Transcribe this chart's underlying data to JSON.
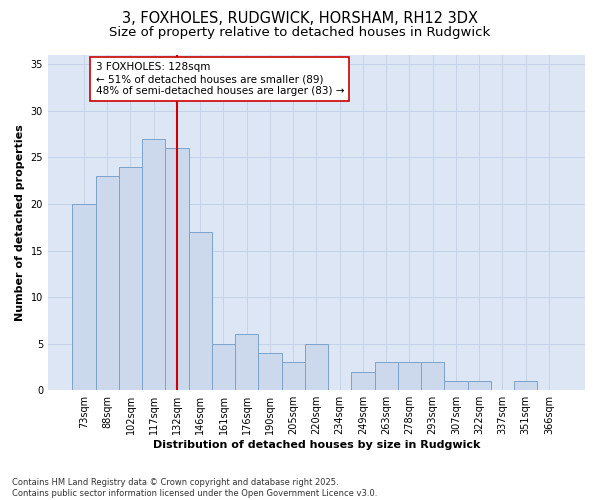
{
  "title_line1": "3, FOXHOLES, RUDGWICK, HORSHAM, RH12 3DX",
  "title_line2": "Size of property relative to detached houses in Rudgwick",
  "xlabel": "Distribution of detached houses by size in Rudgwick",
  "ylabel": "Number of detached properties",
  "categories": [
    "73sqm",
    "88sqm",
    "102sqm",
    "117sqm",
    "132sqm",
    "146sqm",
    "161sqm",
    "176sqm",
    "190sqm",
    "205sqm",
    "220sqm",
    "234sqm",
    "249sqm",
    "263sqm",
    "278sqm",
    "293sqm",
    "307sqm",
    "322sqm",
    "337sqm",
    "351sqm",
    "366sqm"
  ],
  "values": [
    20,
    23,
    24,
    27,
    26,
    17,
    5,
    6,
    4,
    3,
    5,
    0,
    2,
    3,
    3,
    3,
    1,
    1,
    0,
    1,
    0
  ],
  "bar_color": "#ccd9ec",
  "bar_edge_color": "#7ba3cc",
  "vline_x_index": 4,
  "vline_color": "#cc0000",
  "annotation_text": "3 FOXHOLES: 128sqm\n← 51% of detached houses are smaller (89)\n48% of semi-detached houses are larger (83) →",
  "annotation_box_facecolor": "#ffffff",
  "annotation_box_edgecolor": "#cc0000",
  "ylim": [
    0,
    36
  ],
  "yticks": [
    0,
    5,
    10,
    15,
    20,
    25,
    30,
    35
  ],
  "grid_color": "#c5d3e8",
  "plot_bg_color": "#dce6f5",
  "fig_bg_color": "#ffffff",
  "title_fontsize": 10.5,
  "subtitle_fontsize": 9.5,
  "tick_fontsize": 7,
  "axis_label_fontsize": 8,
  "annotation_fontsize": 7.5,
  "footer": "Contains HM Land Registry data © Crown copyright and database right 2025.\nContains public sector information licensed under the Open Government Licence v3.0.",
  "footer_fontsize": 6
}
